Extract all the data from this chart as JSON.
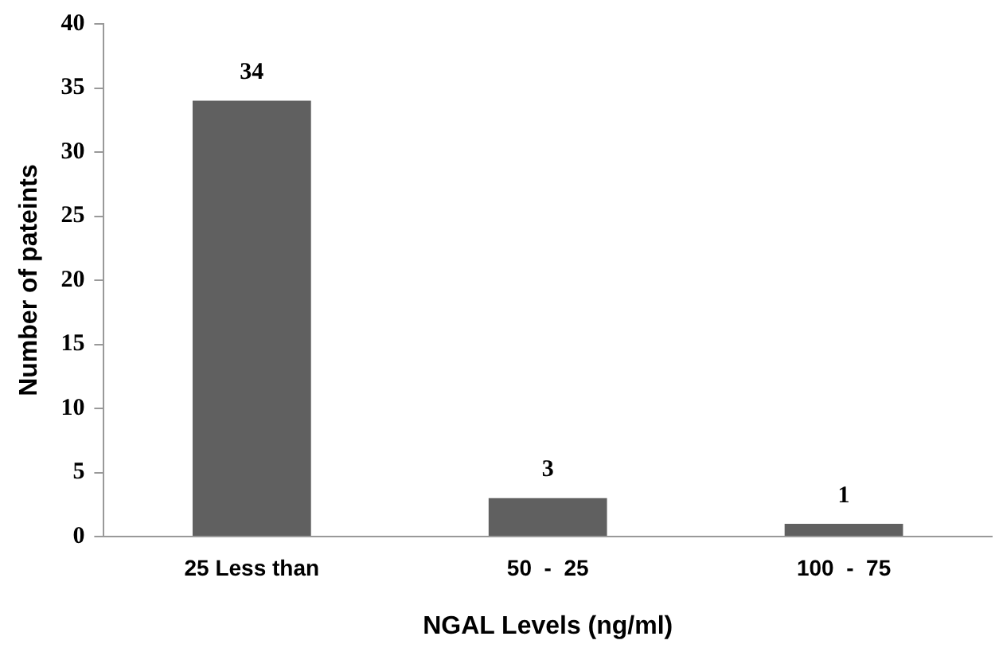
{
  "chart_data": {
    "type": "bar",
    "xlabel": "NGAL Levels (ng/ml)",
    "ylabel": "Number of pateints",
    "categories": [
      "25 Less than",
      "50  -  25",
      "100  -  75"
    ],
    "values": [
      34,
      3,
      1
    ],
    "color": "#606060",
    "ylim": [
      0,
      40
    ],
    "yticks": [
      0,
      5,
      10,
      15,
      20,
      25,
      30,
      35,
      40
    ],
    "grid": false,
    "legend": false,
    "data_labels": true
  }
}
